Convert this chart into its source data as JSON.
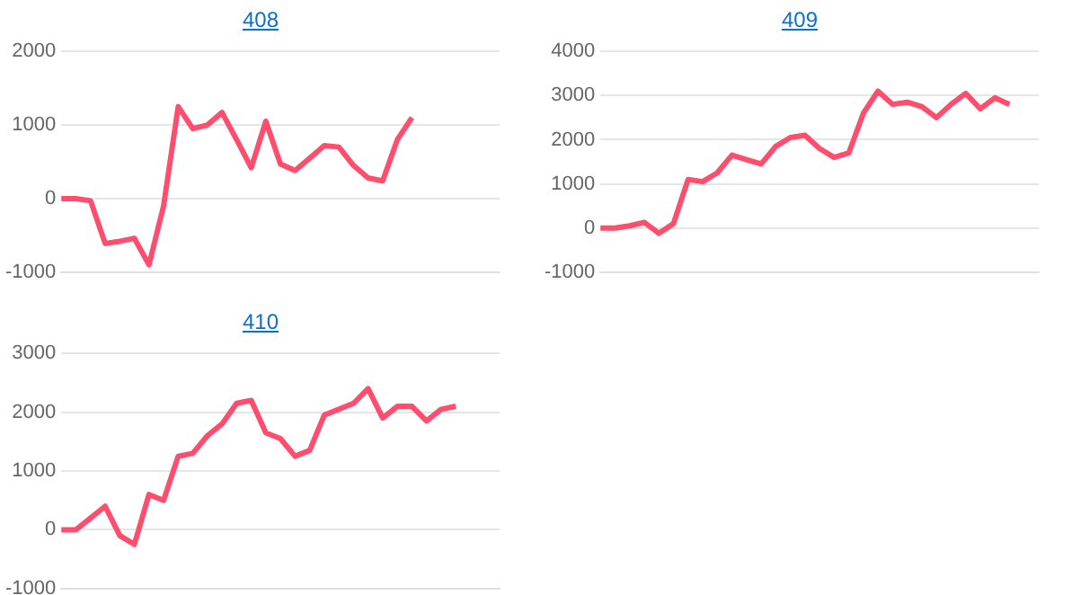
{
  "chart_data": [
    {
      "type": "line",
      "title": "408",
      "categories": [
        null,
        null,
        null,
        null,
        null,
        null,
        null,
        null,
        null,
        null,
        null,
        null,
        null,
        null,
        null,
        null,
        null,
        null,
        null,
        null,
        null,
        null,
        null,
        null,
        null,
        null,
        null,
        null,
        null,
        null,
        null
      ],
      "series": [
        {
          "color": "#ff4d6d",
          "values": [
            0,
            0,
            -30,
            -610,
            -580,
            -540,
            -900,
            -100,
            1250,
            950,
            1000,
            1170,
            800,
            420,
            1050,
            470,
            380,
            550,
            720,
            700,
            450,
            280,
            240,
            800,
            1100,
            null,
            null,
            null,
            null,
            null,
            null
          ]
        }
      ],
      "ylim": [
        -1000,
        2000
      ],
      "yticks": [
        -1000,
        0,
        1000,
        2000
      ],
      "grid": "y",
      "legend": false,
      "marker": "none",
      "tick_labels": "y"
    },
    {
      "type": "line",
      "title": "409",
      "categories": [
        null,
        null,
        null,
        null,
        null,
        null,
        null,
        null,
        null,
        null,
        null,
        null,
        null,
        null,
        null,
        null,
        null,
        null,
        null,
        null,
        null,
        null,
        null,
        null,
        null,
        null,
        null,
        null,
        null,
        null,
        null
      ],
      "series": [
        {
          "color": "#ff4d6d",
          "values": [
            0,
            0,
            50,
            130,
            -120,
            100,
            1100,
            1050,
            1250,
            1650,
            1550,
            1450,
            1850,
            2050,
            2100,
            1800,
            1600,
            1700,
            2600,
            3100,
            2800,
            2850,
            2750,
            2500,
            2800,
            3050,
            2700,
            2950,
            2800,
            null,
            null
          ]
        }
      ],
      "ylim": [
        -1000,
        4000
      ],
      "yticks": [
        -1000,
        0,
        1000,
        2000,
        3000,
        4000
      ],
      "grid": "y",
      "legend": false,
      "marker": "none",
      "tick_labels": "y"
    },
    {
      "type": "line",
      "title": "410",
      "categories": [
        null,
        null,
        null,
        null,
        null,
        null,
        null,
        null,
        null,
        null,
        null,
        null,
        null,
        null,
        null,
        null,
        null,
        null,
        null,
        null,
        null,
        null,
        null,
        null,
        null,
        null,
        null,
        null,
        null,
        null,
        null
      ],
      "series": [
        {
          "color": "#ff4d6d",
          "values": [
            0,
            0,
            200,
            400,
            -100,
            -250,
            600,
            500,
            1250,
            1300,
            1600,
            1800,
            2150,
            2200,
            1650,
            1550,
            1250,
            1350,
            1950,
            2050,
            2150,
            2400,
            1900,
            2100,
            2100,
            1850,
            2050,
            2100,
            null,
            null,
            null
          ]
        }
      ],
      "ylim": [
        -1000,
        3000
      ],
      "yticks": [
        -1000,
        0,
        1000,
        2000,
        3000
      ],
      "grid": "y",
      "legend": false,
      "marker": "none",
      "tick_labels": "y"
    }
  ]
}
